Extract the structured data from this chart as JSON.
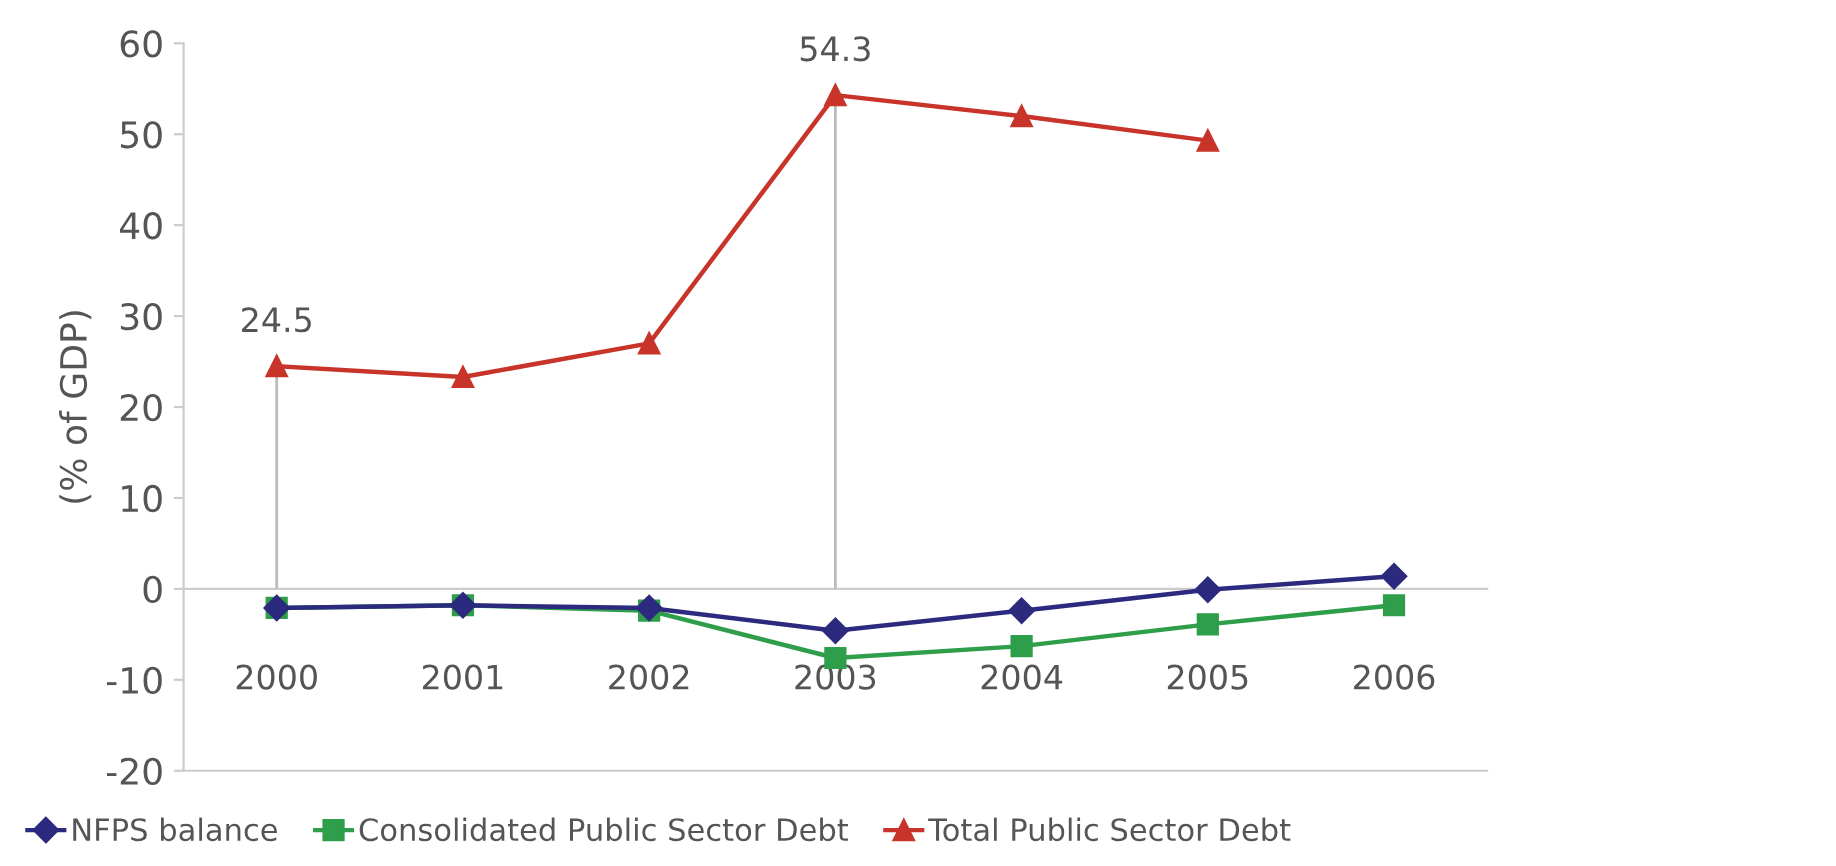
{
  "chart_data": {
    "type": "line",
    "ylabel": "(% of GDP)",
    "categories": [
      "2000",
      "2001",
      "2002",
      "2003",
      "2004",
      "2005",
      "2006"
    ],
    "series": [
      {
        "name": "NFPS balance",
        "color": "#2b2a7e",
        "marker": "diamond",
        "values": [
          -2.1,
          -1.8,
          -2.1,
          -4.6,
          -2.4,
          -0.1,
          1.4
        ]
      },
      {
        "name": "Consolidated Public Sector Debt",
        "color": "#2e9e4a",
        "marker": "square",
        "values": [
          -2.1,
          -1.8,
          -2.4,
          -7.6,
          -6.3,
          -3.9,
          -1.8
        ]
      },
      {
        "name": "Total Public Sector Debt",
        "color": "#c8342a",
        "marker": "triangle",
        "values": [
          24.5,
          23.3,
          27.0,
          54.3,
          52.0,
          49.3,
          null
        ]
      }
    ],
    "annotations": [
      {
        "text": "24.5",
        "x": "2000",
        "y": 24.5
      },
      {
        "text": "54.3",
        "x": "2003",
        "y": 54.3
      }
    ],
    "ylim": [
      -20,
      60
    ],
    "yticks": [
      -20,
      -10,
      0,
      10,
      20,
      30,
      40,
      50,
      60
    ],
    "grid": false,
    "legend": "bottom",
    "line_style": "solid"
  }
}
